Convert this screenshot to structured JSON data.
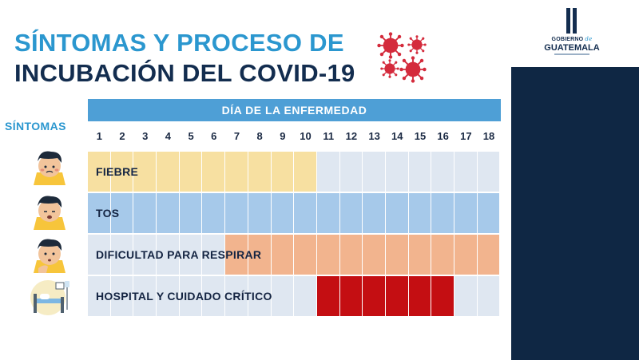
{
  "title": {
    "line1": "SÍNTOMAS Y PROCESO DE",
    "line2": "INCUBACIÓN DEL COVID-19"
  },
  "logo": {
    "line1_a": "GOBIERNO",
    "line1_b": "de",
    "line2": "GUATEMALA"
  },
  "table": {
    "symptoms_label": "SÍNTOMAS",
    "header": "DÍA DE LA ENFERMEDAD",
    "days": [
      "1",
      "2",
      "3",
      "4",
      "5",
      "6",
      "7",
      "8",
      "9",
      "10",
      "11",
      "12",
      "13",
      "14",
      "15",
      "16",
      "17",
      "18"
    ],
    "rows": [
      {
        "label": "FIEBRE",
        "start_day": 1,
        "end_day": 10,
        "color": "#f7e0a1",
        "base_color": "#dfe7f1"
      },
      {
        "label": "TOS",
        "start_day": 1,
        "end_day": 18,
        "color": "#a6c9ea",
        "base_color": "#a6c9ea"
      },
      {
        "label": "DIFICULTAD PARA RESPIRAR",
        "start_day": 7,
        "end_day": 18,
        "color": "#f2b48e",
        "base_color": "#dfe7f1"
      },
      {
        "label": "HOSPITAL Y CUIDADO CRÍTICO",
        "start_day": 11,
        "end_day": 16,
        "color": "#c40e12",
        "base_color": "#dfe7f1"
      }
    ]
  },
  "colors": {
    "title_blue": "#2b97cf",
    "title_navy": "#132d4f",
    "header_blue": "#4e9fd6",
    "side_panel": "#0f2744",
    "virus": "#d42b3c"
  },
  "icons": [
    "coronavirus-icon",
    "fever-face-icon",
    "cough-face-icon",
    "breathing-difficulty-face-icon",
    "hospital-bed-icon"
  ]
}
